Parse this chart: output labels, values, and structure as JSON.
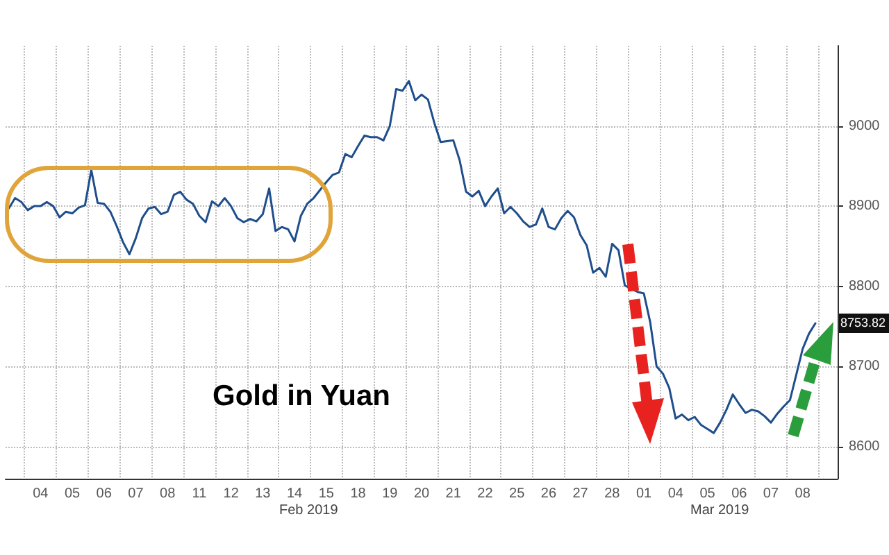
{
  "chart_data": {
    "type": "line",
    "title": "Gold in Yuan",
    "annotations": [
      "Feb 2019",
      "Mar 2019",
      {
        "text": "8753.82",
        "y": 8753.82
      }
    ],
    "categories": [
      null,
      null,
      null,
      null,
      null,
      "04",
      null,
      null,
      null,
      null,
      "05",
      null,
      null,
      null,
      null,
      "06",
      null,
      null,
      null,
      null,
      "07",
      null,
      null,
      null,
      null,
      "08",
      null,
      null,
      null,
      null,
      "11",
      null,
      null,
      null,
      null,
      "12",
      null,
      null,
      null,
      null,
      "13",
      null,
      null,
      null,
      null,
      "14",
      null,
      null,
      null,
      null,
      "15",
      null,
      null,
      null,
      null,
      "18",
      null,
      null,
      null,
      null,
      "19",
      null,
      null,
      null,
      null,
      "20",
      null,
      null,
      null,
      null,
      "21",
      null,
      null,
      null,
      null,
      "22",
      null,
      null,
      null,
      null,
      "25",
      null,
      null,
      null,
      null,
      "26",
      null,
      null,
      null,
      null,
      "27",
      null,
      null,
      null,
      null,
      "28",
      null,
      null,
      null,
      null,
      "01",
      null,
      null,
      null,
      null,
      "04",
      null,
      null,
      null,
      null,
      "05",
      null,
      null,
      null,
      null,
      "06",
      null,
      null,
      null,
      null,
      "07",
      null,
      null,
      null,
      null,
      "08",
      null,
      null,
      null,
      null,
      null
    ],
    "ylim": [
      8560,
      9100
    ],
    "yticks": [
      8600,
      8700,
      8800,
      8900,
      9000
    ],
    "grid": true,
    "marker": "none",
    "line_style": "solid",
    "series": [
      {
        "color": "#1f4e8c",
        "values": [
          8897,
          8910,
          8905,
          8895,
          8900,
          8900,
          8905,
          8900,
          8886,
          8893,
          8891,
          8898,
          8901,
          8945,
          8904,
          8903,
          8893,
          8875,
          8855,
          8840,
          8860,
          8885,
          8897,
          8899,
          8890,
          8893,
          8914,
          8918,
          8908,
          8903,
          8888,
          8880,
          8906,
          8900,
          8910,
          8900,
          8885,
          8880,
          8884,
          8881,
          8890,
          8922,
          8869,
          8874,
          8871,
          8856,
          8888,
          8903,
          8910,
          8920,
          8930,
          8939,
          8942,
          8965,
          8961,
          8975,
          8988,
          8986,
          8986,
          8982,
          9000,
          9046,
          9044,
          9056,
          9032,
          9039,
          9033,
          9004,
          8980,
          8981,
          8982,
          8957,
          8918,
          8912,
          8919,
          8900,
          8912,
          8922,
          8891,
          8899,
          8891,
          8881,
          8874,
          8877,
          8897,
          8874,
          8871,
          8885,
          8894,
          8886,
          8864,
          8851,
          8817,
          8823,
          8812,
          8853,
          8845,
          8801,
          8797,
          8793,
          8791,
          8755,
          8700,
          8691,
          8673,
          8635,
          8640,
          8633,
          8637,
          8627,
          8622,
          8617,
          8630,
          8646,
          8665,
          8653,
          8642,
          8646,
          8644,
          8638,
          8630,
          8641,
          8650,
          8658,
          8690,
          8722,
          8741,
          8753.82,
          null,
          null,
          null
        ]
      }
    ]
  }
}
